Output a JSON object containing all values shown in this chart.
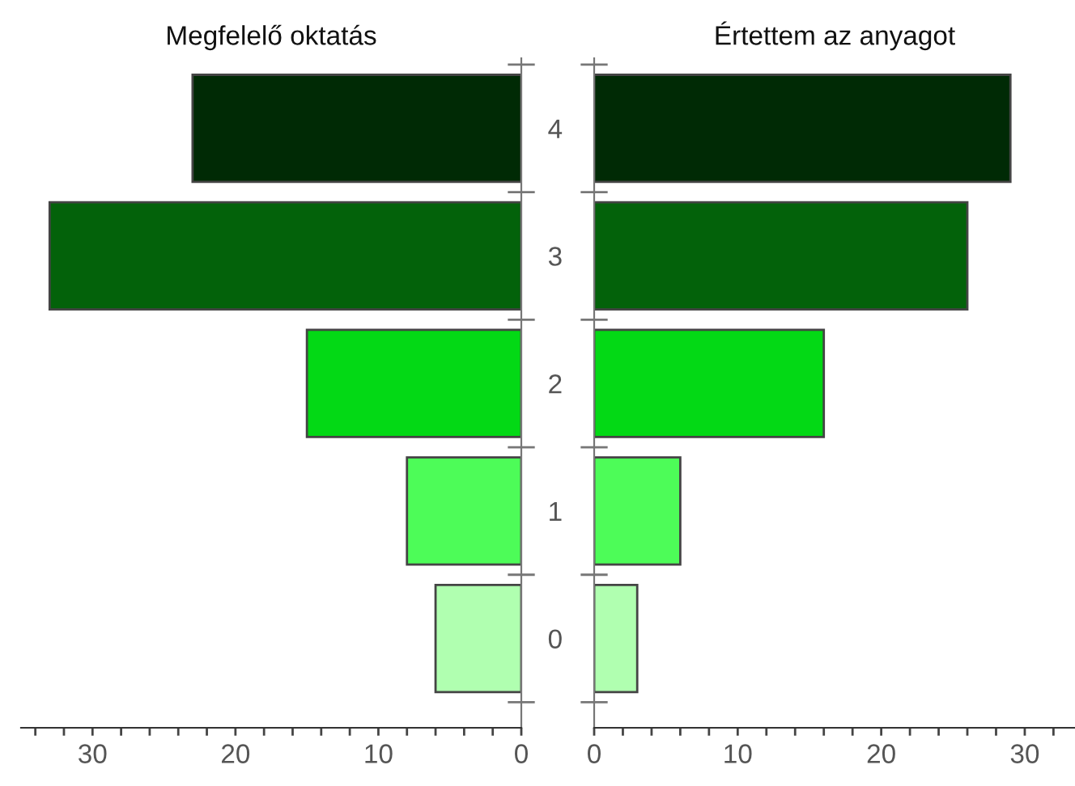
{
  "chart_data": [
    {
      "type": "bar",
      "orientation": "horizontal",
      "title": "Megfelelő oktatás",
      "categories": [
        "4",
        "3",
        "2",
        "1",
        "0"
      ],
      "values": [
        23,
        33,
        15,
        8,
        6
      ],
      "colors": [
        "#002a05",
        "#03620a",
        "#03d915",
        "#4dfc58",
        "#b0ffb0"
      ],
      "xlim": [
        35,
        0
      ],
      "xticks": [
        {
          "value": 34,
          "label": null
        },
        {
          "value": 32,
          "label": null
        },
        30,
        {
          "value": 28,
          "label": null
        },
        {
          "value": 26,
          "label": null
        },
        {
          "value": 24,
          "label": null
        },
        {
          "value": 22,
          "label": null
        },
        20,
        {
          "value": 18,
          "label": null
        },
        {
          "value": 16,
          "label": null
        },
        {
          "value": 14,
          "label": null
        },
        {
          "value": 12,
          "label": null
        },
        10,
        {
          "value": 8,
          "label": null
        },
        {
          "value": 6,
          "label": null
        },
        {
          "value": 4,
          "label": null
        },
        {
          "value": 2,
          "label": null
        },
        0
      ],
      "tick_labels": "x",
      "grid": false,
      "legend": false
    },
    {
      "type": "bar",
      "orientation": "horizontal",
      "title": "Értettem az anyagot",
      "categories": [
        "4",
        "3",
        "2",
        "1",
        "0"
      ],
      "values": [
        29,
        26,
        16,
        6,
        3
      ],
      "colors": [
        "#002a05",
        "#03620a",
        "#03d915",
        "#4dfc58",
        "#b0ffb0"
      ],
      "xlim": [
        0,
        33.5
      ],
      "xticks": [
        0,
        {
          "value": 2,
          "label": null
        },
        {
          "value": 4,
          "label": null
        },
        {
          "value": 6,
          "label": null
        },
        {
          "value": 8,
          "label": null
        },
        10,
        {
          "value": 12,
          "label": null
        },
        {
          "value": 14,
          "label": null
        },
        {
          "value": 16,
          "label": null
        },
        {
          "value": 18,
          "label": null
        },
        20,
        {
          "value": 22,
          "label": null
        },
        {
          "value": 24,
          "label": null
        },
        {
          "value": 26,
          "label": null
        },
        {
          "value": 28,
          "label": null
        },
        30,
        {
          "value": 32,
          "label": null
        }
      ],
      "grid": false,
      "legend": false
    }
  ]
}
